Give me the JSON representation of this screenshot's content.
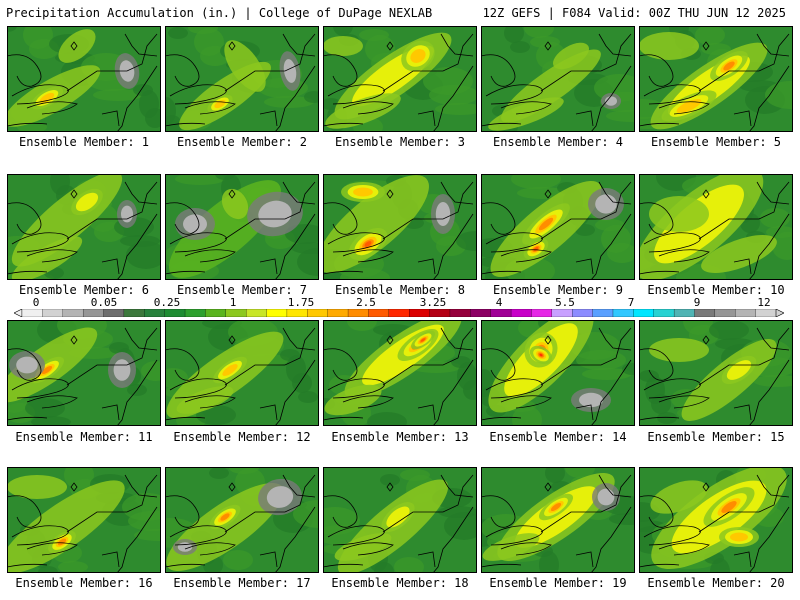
{
  "header": {
    "left": "Precipitation Accumulation (in.) | College of DuPage NEXLAB",
    "right": "12Z GEFS | F084 Valid: 00Z THU JUN 12 2025"
  },
  "colorbar": {
    "tick_labels": [
      "0",
      "0.05",
      "0.25",
      "1",
      "1.75",
      "2.5",
      "3.25",
      "4",
      "5.5",
      "7",
      "9",
      "12"
    ],
    "colors": [
      "#f0f0f0",
      "#d2d2d2",
      "#b4b4b4",
      "#969696",
      "#6e6e6e",
      "#3c783c",
      "#28823c",
      "#1e8c32",
      "#2ea02e",
      "#5ab41e",
      "#8cc81e",
      "#c8e628",
      "#ffff00",
      "#ffe600",
      "#ffc800",
      "#ffaa00",
      "#ff8c00",
      "#ff5a00",
      "#ff2800",
      "#dc0000",
      "#b40014",
      "#96003c",
      "#8c0064",
      "#a00096",
      "#c800c8",
      "#e628e6",
      "#c8a0ff",
      "#8c8cff",
      "#5aa0ff",
      "#32c8ff",
      "#00e6ff",
      "#28d2d2",
      "#50b4b4",
      "#7a7a7a",
      "#969696",
      "#b4b4b4",
      "#d2d2d2"
    ]
  },
  "members": [
    {
      "label": "Ensemble Member: 1"
    },
    {
      "label": "Ensemble Member: 2"
    },
    {
      "label": "Ensemble Member: 3"
    },
    {
      "label": "Ensemble Member: 4"
    },
    {
      "label": "Ensemble Member: 5"
    },
    {
      "label": "Ensemble Member: 6"
    },
    {
      "label": "Ensemble Member: 7"
    },
    {
      "label": "Ensemble Member: 8"
    },
    {
      "label": "Ensemble Member: 9"
    },
    {
      "label": "Ensemble Member: 10"
    },
    {
      "label": "Ensemble Member: 11"
    },
    {
      "label": "Ensemble Member: 12"
    },
    {
      "label": "Ensemble Member: 13"
    },
    {
      "label": "Ensemble Member: 14"
    },
    {
      "label": "Ensemble Member: 15"
    },
    {
      "label": "Ensemble Member: 16"
    },
    {
      "label": "Ensemble Member: 17"
    },
    {
      "label": "Ensemble Member: 18"
    },
    {
      "label": "Ensemble Member: 19"
    },
    {
      "label": "Ensemble Member: 20"
    }
  ]
}
